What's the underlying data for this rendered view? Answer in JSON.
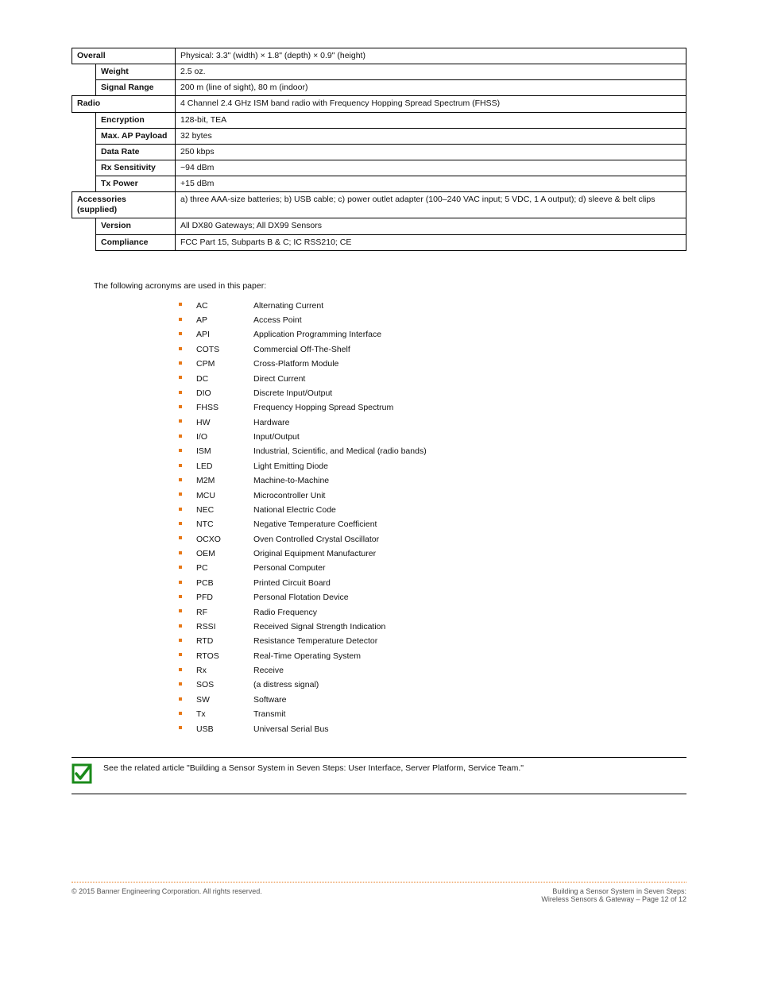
{
  "table": {
    "rows": [
      {
        "kind": "group",
        "label": "Overall",
        "text": "Physical: 3.3\" (width) × 1.8\" (depth) × 0.9\" (height)"
      },
      {
        "kind": "sub",
        "label": "Weight",
        "text": "2.5 oz."
      },
      {
        "kind": "sub",
        "label": "Signal Range",
        "text": "200 m (line of sight), 80 m (indoor)"
      },
      {
        "kind": "group",
        "label": "Radio",
        "text": "4 Channel 2.4 GHz ISM band radio with Frequency Hopping Spread Spectrum (FHSS)"
      },
      {
        "kind": "sub",
        "label": "Encryption",
        "text": "128-bit, TEA"
      },
      {
        "kind": "sub",
        "label": "Max. AP Payload",
        "text": "32 bytes"
      },
      {
        "kind": "sub",
        "label": "Data Rate",
        "text": "250 kbps"
      },
      {
        "kind": "sub",
        "label": "Rx Sensitivity",
        "text": "−94 dBm"
      },
      {
        "kind": "sub",
        "label": "Tx Power",
        "text": "+15 dBm"
      },
      {
        "kind": "group2",
        "label": "Accessories\n(supplied)",
        "text": "a) three AAA-size batteries; b) USB cable; c) power outlet adapter (100–240 VAC input; 5 VDC, 1 A output); d) sleeve & belt clips"
      },
      {
        "kind": "sub",
        "label": "Version",
        "text": "All DX80 Gateways; All DX99 Sensors"
      },
      {
        "kind": "sub",
        "label": "Compliance",
        "text": "FCC Part 15, Subparts B & C; IC RSS210; CE"
      }
    ]
  },
  "acronyms_intro": "The following acronyms are used in this paper:",
  "acronyms": [
    {
      "abbr": "AC",
      "def": "Alternating Current"
    },
    {
      "abbr": "AP",
      "def": "Access Point"
    },
    {
      "abbr": "API",
      "def": "Application Programming Interface"
    },
    {
      "abbr": "COTS",
      "def": "Commercial Off-The-Shelf"
    },
    {
      "abbr": "CPM",
      "def": "Cross-Platform Module"
    },
    {
      "abbr": "DC",
      "def": "Direct Current"
    },
    {
      "abbr": "DIO",
      "def": "Discrete Input/Output"
    },
    {
      "abbr": "FHSS",
      "def": "Frequency Hopping Spread Spectrum"
    },
    {
      "abbr": "HW",
      "def": "Hardware"
    },
    {
      "abbr": "I/O",
      "def": "Input/Output"
    },
    {
      "abbr": "ISM",
      "def": "Industrial, Scientific, and Medical (radio bands)"
    },
    {
      "abbr": "LED",
      "def": "Light Emitting Diode"
    },
    {
      "abbr": "M2M",
      "def": "Machine-to-Machine"
    },
    {
      "abbr": "MCU",
      "def": "Microcontroller Unit"
    },
    {
      "abbr": "NEC",
      "def": "National Electric Code"
    },
    {
      "abbr": "NTC",
      "def": "Negative Temperature Coefficient"
    },
    {
      "abbr": "OCXO",
      "def": "Oven Controlled Crystal Oscillator"
    },
    {
      "abbr": "OEM",
      "def": "Original Equipment Manufacturer"
    },
    {
      "abbr": "PC",
      "def": "Personal Computer"
    },
    {
      "abbr": "PCB",
      "def": "Printed Circuit Board"
    },
    {
      "abbr": "PFD",
      "def": "Personal Flotation Device"
    },
    {
      "abbr": "RF",
      "def": "Radio Frequency"
    },
    {
      "abbr": "RSSI",
      "def": "Received Signal Strength Indication"
    },
    {
      "abbr": "RTD",
      "def": "Resistance Temperature Detector"
    },
    {
      "abbr": "RTOS",
      "def": "Real-Time Operating System"
    },
    {
      "abbr": "Rx",
      "def": "Receive"
    },
    {
      "abbr": "SOS",
      "def": "(a distress signal)"
    },
    {
      "abbr": "SW",
      "def": "Software"
    },
    {
      "abbr": "Tx",
      "def": "Transmit"
    },
    {
      "abbr": "USB",
      "def": "Universal Serial Bus"
    }
  ],
  "callout": "See the related article \"Building a Sensor System in Seven Steps: User Interface, Server Platform, Service Team.\"",
  "footer": {
    "left": "© 2015 Banner Engineering Corporation. All rights reserved.",
    "right_line1": "Building a Sensor System in Seven Steps:",
    "right_line2": "Wireless Sensors & Gateway – Page 12 of 12"
  },
  "colors": {
    "accent": "#e77817",
    "check": "#1a8a1a"
  }
}
